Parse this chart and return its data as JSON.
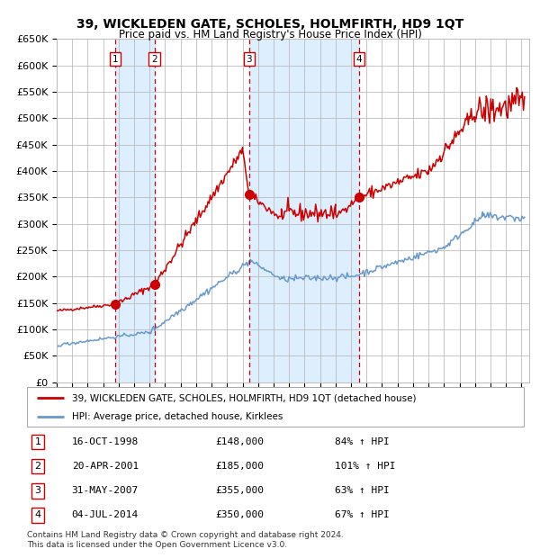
{
  "title": "39, WICKLEDEN GATE, SCHOLES, HOLMFIRTH, HD9 1QT",
  "subtitle": "Price paid vs. HM Land Registry's House Price Index (HPI)",
  "ylim": [
    0,
    650000
  ],
  "yticks": [
    0,
    50000,
    100000,
    150000,
    200000,
    250000,
    300000,
    350000,
    400000,
    450000,
    500000,
    550000,
    600000,
    650000
  ],
  "xlim_start": 1995.0,
  "xlim_end": 2025.5,
  "red_color": "#cc0000",
  "blue_color": "#6699cc",
  "background_color": "#ffffff",
  "grid_color": "#bbbbbb",
  "shade_color": "#ddeeff",
  "sale_dates_decimal": [
    1998.79,
    2001.31,
    2007.42,
    2014.51
  ],
  "sale_prices": [
    148000,
    185000,
    355000,
    350000
  ],
  "sale_labels": [
    "1",
    "2",
    "3",
    "4"
  ],
  "legend_entries": [
    "39, WICKLEDEN GATE, SCHOLES, HOLMFIRTH, HD9 1QT (detached house)",
    "HPI: Average price, detached house, Kirklees"
  ],
  "table_data": [
    [
      "1",
      "16-OCT-1998",
      "£148,000",
      "84% ↑ HPI"
    ],
    [
      "2",
      "20-APR-2001",
      "£185,000",
      "101% ↑ HPI"
    ],
    [
      "3",
      "31-MAY-2007",
      "£355,000",
      "63% ↑ HPI"
    ],
    [
      "4",
      "04-JUL-2014",
      "£350,000",
      "67% ↑ HPI"
    ]
  ],
  "footer": "Contains HM Land Registry data © Crown copyright and database right 2024.\nThis data is licensed under the Open Government Licence v3.0."
}
